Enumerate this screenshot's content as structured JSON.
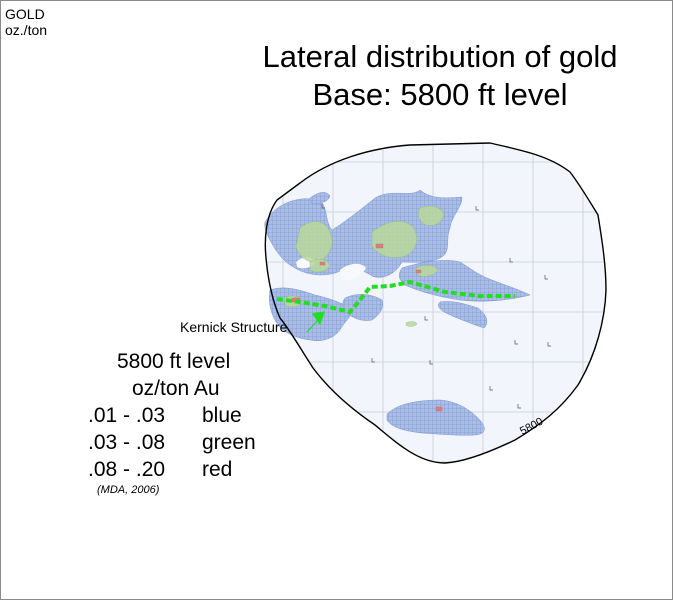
{
  "corner": {
    "line1": "GOLD",
    "line2": "oz./ton"
  },
  "title": {
    "line1": "Lateral distribution of gold",
    "line2": "Base: 5800 ft level"
  },
  "map": {
    "structure_label": "Kernick Structure",
    "contour_label": "5800",
    "colors": {
      "low_grade": "#8fa8dc",
      "mid_grade": "#b9d89a",
      "high_grade": "#d98080",
      "structure": "#22dd22",
      "boundary": "#000000"
    }
  },
  "legend": {
    "title": "5800 ft level",
    "unit": "oz/ton Au",
    "rows": [
      {
        "range": ".01 - .03",
        "color": "blue"
      },
      {
        "range": ".03 - .08",
        "color": "green"
      },
      {
        "range": ".08 - .20",
        "color": "red"
      }
    ],
    "source": "(MDA, 2006)"
  }
}
